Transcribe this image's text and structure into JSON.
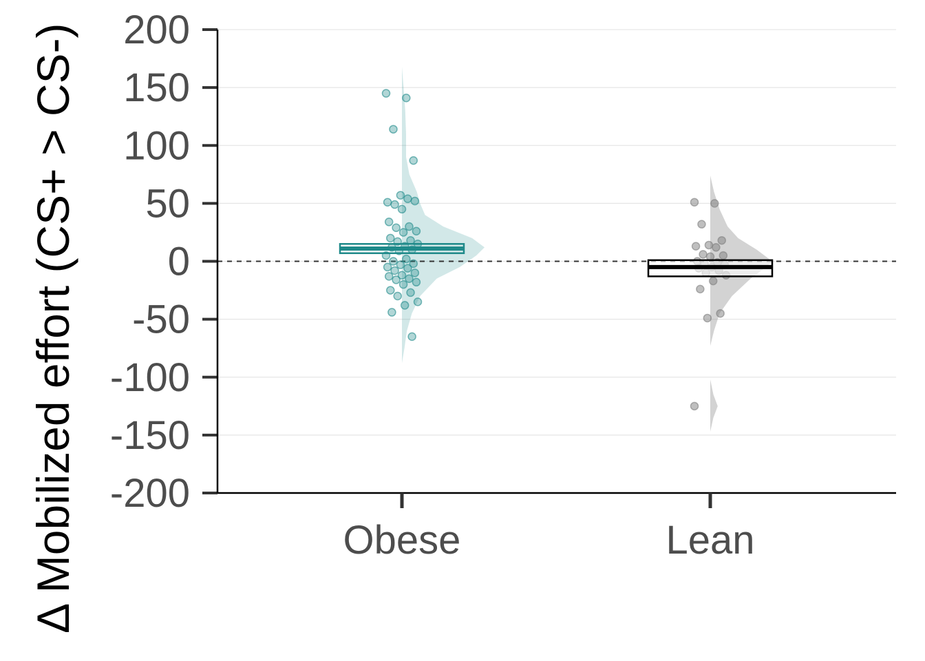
{
  "chart_data": {
    "type": "raincloud",
    "ylabel": "Δ Mobilized effort (CS+ > CS-)",
    "ylim": [
      -200,
      200
    ],
    "yticks": [
      200,
      150,
      100,
      50,
      0,
      -50,
      -100,
      -150,
      -200
    ],
    "ytick_labels": [
      "200",
      "150",
      "100",
      "50",
      "0",
      "-50",
      "-100",
      "-150",
      "-200"
    ],
    "categories": [
      "Obese",
      "Lean"
    ],
    "reference_line": 0,
    "grid": "horizontal",
    "groups": [
      {
        "category": "Obese",
        "color": "#1f8a8a",
        "box": {
          "lower": 7,
          "median": 11,
          "upper": 15
        },
        "points": [
          145,
          141,
          114,
          87,
          57,
          51,
          54,
          49,
          52,
          45,
          34,
          30,
          29,
          26,
          25,
          20,
          18,
          17,
          15,
          13,
          12,
          10,
          9,
          5,
          2,
          0,
          -2,
          -3,
          -5,
          -6,
          -8,
          -10,
          -12,
          -13,
          -15,
          -16,
          -18,
          -20,
          -25,
          -27,
          -30,
          -35,
          -38,
          -44,
          -65
        ],
        "density": [
          [
            -88,
            0
          ],
          [
            -75,
            0.03
          ],
          [
            -60,
            0.06
          ],
          [
            -45,
            0.12
          ],
          [
            -30,
            0.22
          ],
          [
            -15,
            0.42
          ],
          [
            -5,
            0.7
          ],
          [
            5,
            0.9
          ],
          [
            12,
            1.0
          ],
          [
            20,
            0.85
          ],
          [
            30,
            0.5
          ],
          [
            40,
            0.28
          ],
          [
            50,
            0.22
          ],
          [
            60,
            0.18
          ],
          [
            75,
            0.09
          ],
          [
            90,
            0.05
          ],
          [
            110,
            0.05
          ],
          [
            130,
            0.04
          ],
          [
            150,
            0.02
          ],
          [
            168,
            0
          ]
        ]
      },
      {
        "category": "Lean",
        "color": "#808080",
        "box": {
          "lower": -13,
          "median": -5,
          "upper": 1
        },
        "points": [
          51,
          50,
          32,
          18,
          14,
          13,
          12,
          6,
          5,
          4,
          0,
          -1,
          -2,
          -3,
          -5,
          -6,
          -8,
          -10,
          -12,
          -17,
          -24,
          -45,
          -49,
          -125
        ],
        "density": [
          [
            -73,
            0
          ],
          [
            -60,
            0.06
          ],
          [
            -45,
            0.15
          ],
          [
            -30,
            0.35
          ],
          [
            -15,
            0.65
          ],
          [
            -5,
            0.9
          ],
          [
            0,
            1.0
          ],
          [
            10,
            0.75
          ],
          [
            20,
            0.45
          ],
          [
            30,
            0.28
          ],
          [
            45,
            0.15
          ],
          [
            60,
            0.06
          ],
          [
            74,
            0
          ]
        ],
        "density_lower": [
          [
            -147,
            0
          ],
          [
            -135,
            0.05
          ],
          [
            -125,
            0.12
          ],
          [
            -115,
            0.05
          ],
          [
            -102,
            0
          ]
        ]
      }
    ]
  }
}
